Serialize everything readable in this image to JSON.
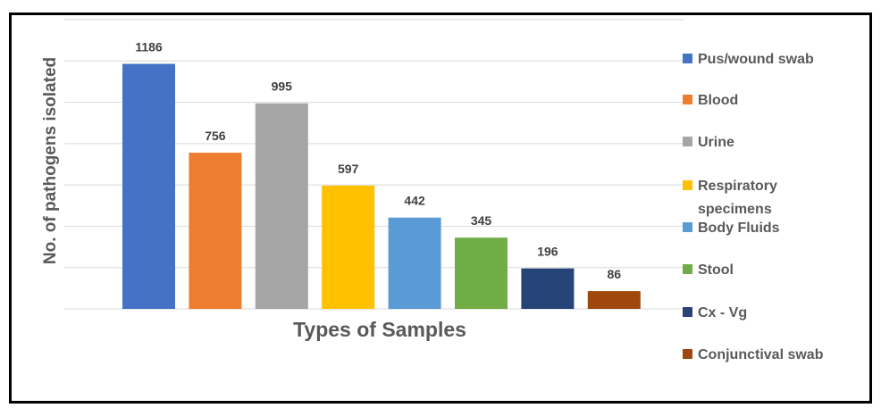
{
  "chart_data": {
    "type": "bar",
    "categories": [
      "Pus/wound swab",
      "Blood",
      "Urine",
      "Respiratory specimens",
      "Body Fluids",
      "Stool",
      "Cx - Vg",
      "Conjunctival swab"
    ],
    "values": [
      1186,
      756,
      995,
      597,
      442,
      345,
      196,
      86
    ],
    "colors": [
      "#4472C4",
      "#ED7D31",
      "#A5A5A5",
      "#FFC000",
      "#5B9BD5",
      "#70AD47",
      "#264478",
      "#9E480E"
    ],
    "legend_lines": [
      [
        "Pus/wound swab"
      ],
      [
        "Blood"
      ],
      [
        "Urine"
      ],
      [
        "Respiratory",
        "specimens"
      ],
      [
        "Body Fluids"
      ],
      [
        "Stool"
      ],
      [
        "Cx - Vg"
      ],
      [
        "Conjunctival swab"
      ]
    ],
    "xlabel": "Types of Samples",
    "ylabel": "No. of pathogens isolated",
    "ylim": [
      0,
      1400
    ],
    "ytick_step": 200,
    "grid": true,
    "legend_position": "right",
    "data_labels": true
  }
}
